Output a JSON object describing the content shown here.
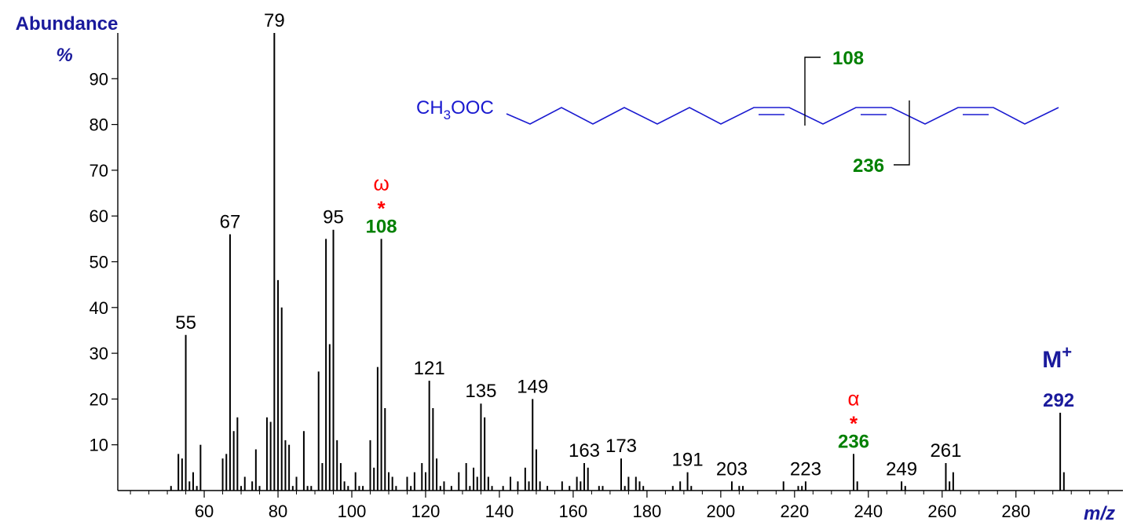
{
  "chart_data": {
    "type": "bar",
    "y_label": "Abundance",
    "y_unit": "%",
    "x_label": "m/z",
    "color": "#000000",
    "x": [
      51,
      53,
      54,
      55,
      56,
      57,
      58,
      59,
      65,
      66,
      67,
      68,
      69,
      70,
      71,
      73,
      74,
      75,
      77,
      78,
      79,
      80,
      81,
      82,
      83,
      84,
      85,
      87,
      88,
      89,
      91,
      92,
      93,
      94,
      95,
      96,
      97,
      98,
      99,
      101,
      102,
      103,
      105,
      106,
      107,
      108,
      109,
      110,
      111,
      112,
      115,
      116,
      117,
      119,
      120,
      121,
      122,
      123,
      124,
      125,
      127,
      129,
      131,
      132,
      133,
      134,
      135,
      136,
      137,
      138,
      141,
      143,
      145,
      147,
      148,
      149,
      150,
      151,
      153,
      157,
      159,
      161,
      162,
      163,
      164,
      167,
      168,
      173,
      174,
      175,
      177,
      178,
      179,
      187,
      189,
      191,
      192,
      203,
      205,
      206,
      217,
      221,
      222,
      223,
      236,
      237,
      249,
      250,
      261,
      262,
      263,
      292,
      293
    ],
    "values": [
      1,
      8,
      7,
      34,
      2,
      4,
      1,
      10,
      7,
      8,
      56,
      13,
      16,
      1,
      3,
      2,
      9,
      1,
      16,
      15,
      100,
      46,
      40,
      11,
      10,
      1,
      3,
      13,
      1,
      1,
      26,
      6,
      55,
      32,
      57,
      11,
      6,
      2,
      1,
      4,
      1,
      1,
      11,
      5,
      27,
      55,
      18,
      4,
      3,
      1,
      3,
      1,
      4,
      6,
      4,
      24,
      18,
      7,
      1,
      2,
      1,
      4,
      6,
      1,
      5,
      3,
      19,
      16,
      3,
      1,
      1,
      3,
      2,
      5,
      2,
      20,
      9,
      2,
      1,
      2,
      1,
      3,
      2,
      6,
      5,
      1,
      1,
      7,
      1,
      3,
      3,
      2,
      1,
      1,
      2,
      4,
      1,
      2,
      1,
      1,
      2,
      1,
      1,
      2,
      8,
      2,
      2,
      1,
      6,
      2,
      4,
      17,
      4
    ],
    "xlim": [
      37,
      309
    ],
    "ylim": [
      0,
      100
    ],
    "xticks": [
      60,
      80,
      100,
      120,
      140,
      160,
      180,
      200,
      220,
      240,
      260,
      280
    ],
    "xminorticks": [
      40,
      45,
      50,
      55,
      65,
      70,
      75,
      85,
      90,
      95,
      105,
      110,
      115,
      125,
      130,
      135,
      145,
      150,
      155,
      165,
      170,
      175,
      185,
      190,
      195,
      205,
      210,
      215,
      225,
      230,
      235,
      245,
      250,
      255,
      265,
      270,
      275,
      285,
      290,
      295,
      300,
      305
    ],
    "yticks": [
      10,
      20,
      30,
      40,
      50,
      60,
      70,
      80,
      90
    ],
    "labeled_peaks": [
      55,
      67,
      79,
      95,
      121,
      135,
      149,
      163,
      173,
      191,
      203,
      223,
      249,
      261
    ],
    "special_peaks": [
      {
        "x": 108,
        "symbol": "ω",
        "marker": "*",
        "color": "#008000"
      },
      {
        "x": 236,
        "symbol": "α",
        "marker": "*",
        "color": "#008000"
      }
    ],
    "molecular_ion": {
      "x": 292,
      "label": "M",
      "charge": "+",
      "color": "#1a1a9c"
    },
    "structure": {
      "group": "CH",
      "subscript": "3",
      "group_rest": "OOC",
      "fragments": [
        108,
        236
      ]
    }
  }
}
